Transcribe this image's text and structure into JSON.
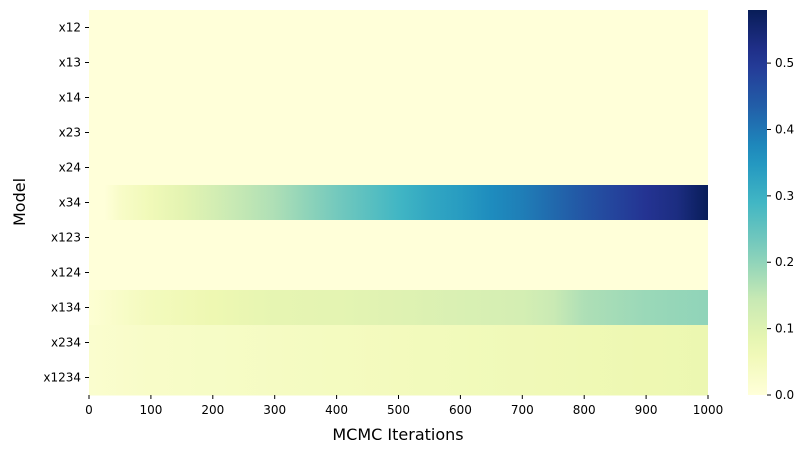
{
  "chart_data": {
    "type": "heatmap",
    "title": "",
    "xlabel": "MCMC Iterations",
    "ylabel": "Model",
    "rows": [
      "x12",
      "x13",
      "x14",
      "x23",
      "x24",
      "x34",
      "x123",
      "x124",
      "x134",
      "x234",
      "x1234"
    ],
    "x_ticks": [
      0,
      100,
      200,
      300,
      400,
      500,
      600,
      700,
      800,
      900,
      1000
    ],
    "xlim": [
      0,
      1000
    ],
    "colorbar": {
      "ticks": [
        "0.0",
        "0.1",
        "0.2",
        "0.3",
        "0.4",
        "0.5"
      ],
      "range": [
        0,
        0.58
      ],
      "colormap": "YlGnBu"
    },
    "series": [
      {
        "name": "x12",
        "x": [
          0,
          1000
        ],
        "values": [
          0,
          0
        ]
      },
      {
        "name": "x13",
        "x": [
          0,
          1000
        ],
        "values": [
          0,
          0
        ]
      },
      {
        "name": "x14",
        "x": [
          0,
          1000
        ],
        "values": [
          0,
          0
        ]
      },
      {
        "name": "x23",
        "x": [
          0,
          1000
        ],
        "values": [
          0,
          0
        ]
      },
      {
        "name": "x24",
        "x": [
          0,
          1000
        ],
        "values": [
          0,
          0
        ]
      },
      {
        "name": "x34",
        "x": [
          0,
          25,
          50,
          100,
          150,
          200,
          250,
          300,
          350,
          400,
          450,
          500,
          550,
          600,
          650,
          700,
          750,
          800,
          850,
          900,
          950,
          980,
          1000
        ],
        "values": [
          0,
          0.0,
          0.03,
          0.06,
          0.09,
          0.12,
          0.15,
          0.17,
          0.2,
          0.23,
          0.26,
          0.29,
          0.32,
          0.34,
          0.37,
          0.39,
          0.42,
          0.45,
          0.48,
          0.51,
          0.53,
          0.56,
          0.58
        ]
      },
      {
        "name": "x123",
        "x": [
          0,
          1000
        ],
        "values": [
          0,
          0
        ]
      },
      {
        "name": "x124",
        "x": [
          0,
          1000
        ],
        "values": [
          0,
          0
        ]
      },
      {
        "name": "x134",
        "x": [
          0,
          50,
          100,
          200,
          300,
          400,
          500,
          600,
          700,
          750,
          800,
          900,
          1000
        ],
        "values": [
          0.01,
          0.03,
          0.05,
          0.07,
          0.085,
          0.09,
          0.1,
          0.11,
          0.12,
          0.14,
          0.17,
          0.19,
          0.2
        ]
      },
      {
        "name": "x234",
        "x": [
          0,
          100,
          200,
          300,
          400,
          500,
          600,
          700,
          800,
          900,
          1000
        ],
        "values": [
          0.02,
          0.03,
          0.035,
          0.04,
          0.045,
          0.05,
          0.055,
          0.06,
          0.065,
          0.07,
          0.075
        ]
      },
      {
        "name": "x1234",
        "x": [
          0,
          100,
          200,
          300,
          400,
          500,
          600,
          700,
          800,
          900,
          1000
        ],
        "values": [
          0.02,
          0.03,
          0.035,
          0.04,
          0.045,
          0.05,
          0.055,
          0.06,
          0.065,
          0.07,
          0.075
        ]
      }
    ]
  }
}
